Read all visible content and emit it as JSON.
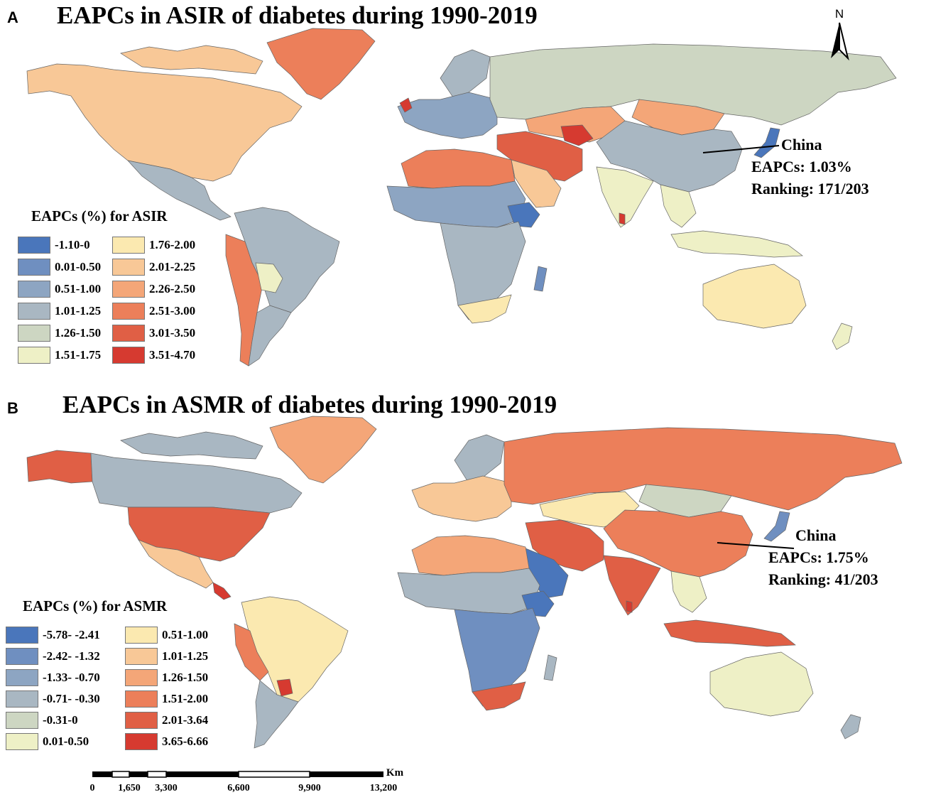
{
  "panel_a": {
    "letter": "A",
    "title": "EAPCs in ASIR of diabetes during 1990-2019",
    "legend": {
      "title": "EAPCs (%) for ASIR",
      "items": [
        {
          "label": "-1.10-0",
          "color": "#4a76bb"
        },
        {
          "label": "0.01-0.50",
          "color": "#6f8fc0"
        },
        {
          "label": "0.51-1.00",
          "color": "#8da5c2"
        },
        {
          "label": "1.01-1.25",
          "color": "#a9b7c2"
        },
        {
          "label": "1.26-1.50",
          "color": "#cdd6c2"
        },
        {
          "label": "1.51-1.75",
          "color": "#eef0c6"
        },
        {
          "label": "1.76-2.00",
          "color": "#fbe9b0"
        },
        {
          "label": "2.01-2.25",
          "color": "#f8c897"
        },
        {
          "label": "2.26-2.50",
          "color": "#f4a678"
        },
        {
          "label": "2.51-3.00",
          "color": "#ec7f5a"
        },
        {
          "label": "3.01-3.50",
          "color": "#e05f45"
        },
        {
          "label": "3.51-4.70",
          "color": "#d63a30"
        }
      ]
    },
    "callout": {
      "label": "China",
      "eapcs_prefix": "EAPCs:",
      "eapcs_value": "1.03%",
      "ranking_prefix": "Ranking:",
      "ranking_value": "171/203"
    }
  },
  "panel_b": {
    "letter": "B",
    "title": "EAPCs in ASMR of diabetes during 1990-2019",
    "legend": {
      "title": "EAPCs (%) for ASMR",
      "items": [
        {
          "label": "-5.78- -2.41",
          "color": "#4a76bb"
        },
        {
          "label": "-2.42- -1.32",
          "color": "#6f8fc0"
        },
        {
          "label": "-1.33- -0.70",
          "color": "#8da5c2"
        },
        {
          "label": "-0.71- -0.30",
          "color": "#a9b7c2"
        },
        {
          "label": "-0.31-0",
          "color": "#cdd6c2"
        },
        {
          "label": "0.01-0.50",
          "color": "#eef0c6"
        },
        {
          "label": "0.51-1.00",
          "color": "#fbe9b0"
        },
        {
          "label": "1.01-1.25",
          "color": "#f8c897"
        },
        {
          "label": "1.26-1.50",
          "color": "#f4a678"
        },
        {
          "label": "1.51-2.00",
          "color": "#ec7f5a"
        },
        {
          "label": "2.01-3.64",
          "color": "#e05f45"
        },
        {
          "label": "3.65-6.66",
          "color": "#d63a30"
        }
      ]
    },
    "callout": {
      "label": "China",
      "eapcs_prefix": "EAPCs:",
      "eapcs_value": "1.75%",
      "ranking_prefix": "Ranking:",
      "ranking_value": "41/203"
    }
  },
  "north_arrow": {
    "label": "N"
  },
  "scale_bar": {
    "unit": "Km",
    "ticks": [
      "0",
      "1,650",
      "3,300",
      "6,600",
      "9,900",
      "13,200"
    ]
  }
}
